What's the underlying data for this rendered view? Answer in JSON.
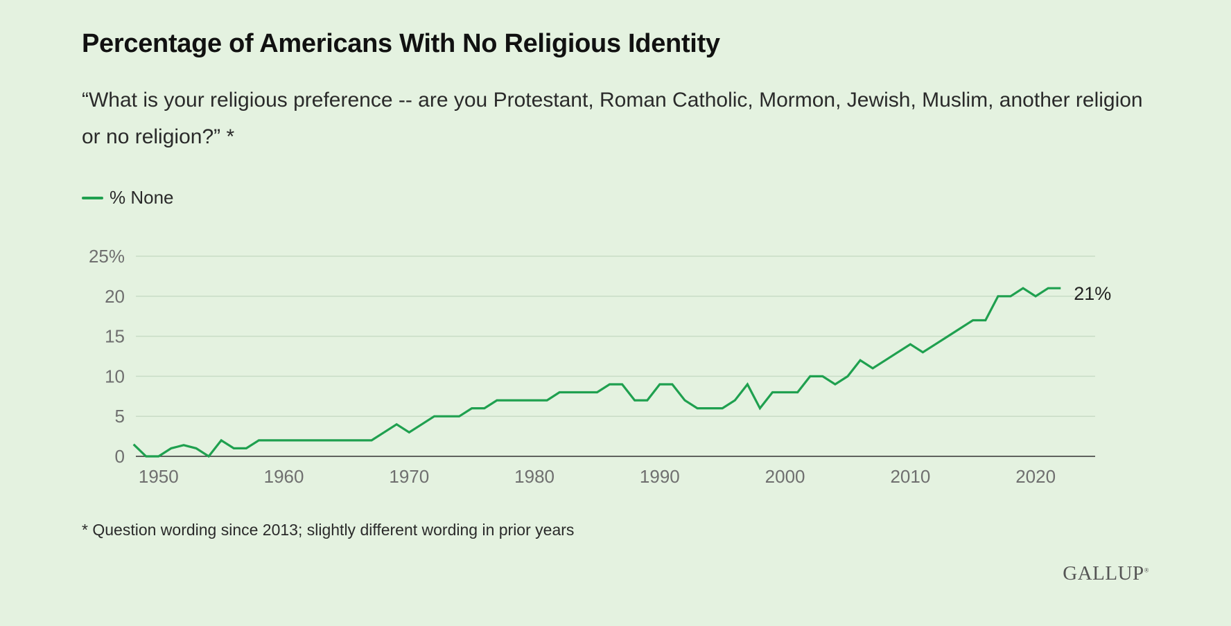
{
  "title": "Percentage of Americans With No Religious Identity",
  "subtitle": "“What is your religious preference -- are you Protestant, Roman Catholic, Mormon, Jewish, Muslim, another religion or no religion?” *",
  "footnote": "* Question wording since 2013; slightly different wording in prior years",
  "logo": "GALLUP",
  "colors": {
    "background": "#e4f2e0",
    "line": "#1fa04f",
    "grid": "#c8dcc6",
    "axis": "#333333",
    "tick_text": "#6f6f6f"
  },
  "chart_data": {
    "type": "line",
    "title": "Percentage of Americans With No Religious Identity",
    "xlabel": "",
    "ylabel": "",
    "xlim": [
      1947.3,
      2023.7
    ],
    "ylim": [
      0,
      25
    ],
    "x_ticks": [
      1950,
      1960,
      1970,
      1980,
      1990,
      2000,
      2010,
      2020
    ],
    "y_ticks": [
      {
        "value": 0,
        "label": "0"
      },
      {
        "value": 5,
        "label": "5"
      },
      {
        "value": 10,
        "label": "10"
      },
      {
        "value": 15,
        "label": "15"
      },
      {
        "value": 20,
        "label": "20"
      },
      {
        "value": 25,
        "label": "25%"
      }
    ],
    "grid": true,
    "legend": {
      "position": "top-left"
    },
    "end_label": "21%",
    "series": [
      {
        "name": "% None",
        "x": [
          1948,
          1949,
          1950,
          1951,
          1952,
          1953,
          1954,
          1955,
          1956,
          1957,
          1958,
          1959,
          1960,
          1961,
          1962,
          1963,
          1964,
          1965,
          1966,
          1967,
          1968,
          1969,
          1970,
          1971,
          1972,
          1973,
          1974,
          1975,
          1976,
          1977,
          1978,
          1979,
          1980,
          1981,
          1982,
          1983,
          1984,
          1985,
          1986,
          1987,
          1988,
          1989,
          1990,
          1991,
          1992,
          1993,
          1994,
          1995,
          1996,
          1997,
          1998,
          1999,
          2000,
          2001,
          2002,
          2003,
          2004,
          2005,
          2006,
          2007,
          2008,
          2009,
          2010,
          2011,
          2012,
          2013,
          2014,
          2015,
          2016,
          2017,
          2018,
          2019,
          2020,
          2021,
          2022
        ],
        "values": [
          1.5,
          0,
          0,
          1,
          1.4,
          1,
          0,
          2,
          1,
          1,
          2,
          2,
          2,
          2,
          2,
          2,
          2,
          2,
          2,
          2,
          3,
          4,
          3,
          4,
          5,
          5,
          5,
          6,
          6,
          7,
          7,
          7,
          7,
          7,
          8,
          8,
          8,
          8,
          9,
          9,
          7,
          7,
          9,
          9,
          7,
          6,
          6,
          6,
          7,
          9,
          6,
          8,
          8,
          8,
          10,
          10,
          9,
          10,
          12,
          11,
          12,
          13,
          14,
          13,
          14,
          15,
          16,
          17,
          17,
          20,
          20,
          21,
          20,
          21,
          21
        ]
      }
    ]
  }
}
